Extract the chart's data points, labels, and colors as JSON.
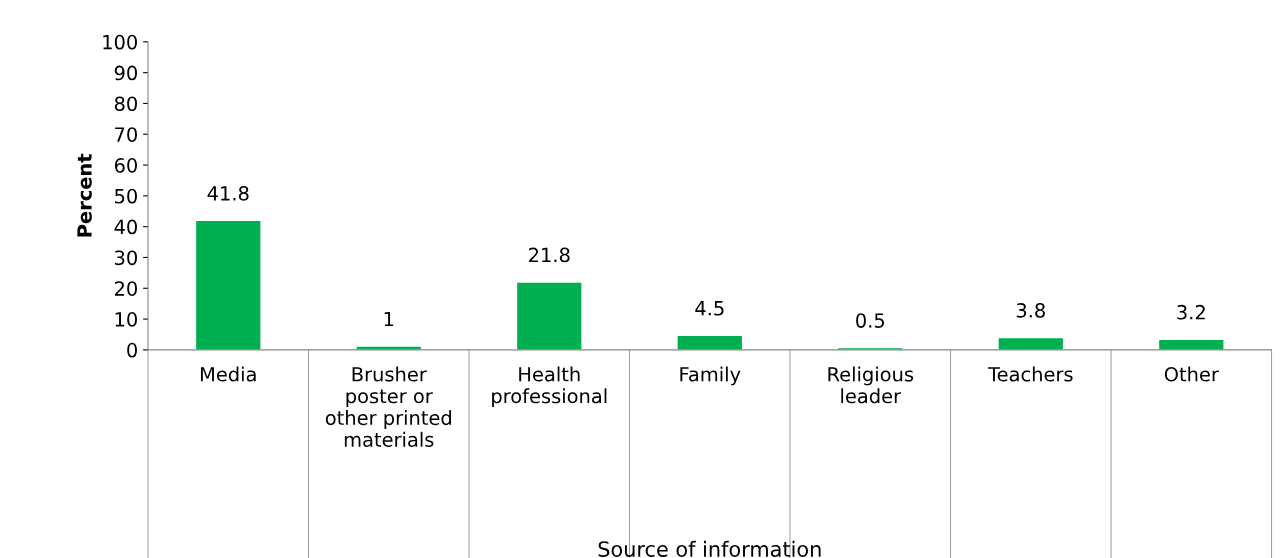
{
  "chart_data": {
    "type": "bar",
    "xlabel": "Source of information",
    "ylabel": "Percent",
    "categories": [
      "Media",
      "Brusher\nposter or\nother printed\nmaterials",
      "Health\nprofessional",
      "Family",
      "Religious\nleader",
      "Teachers",
      "Other"
    ],
    "values": [
      41.8,
      1,
      21.8,
      4.5,
      0.5,
      3.8,
      3.2
    ],
    "color": "#00b050",
    "ylim": [
      0,
      100
    ],
    "yticks": [
      0,
      10,
      20,
      30,
      40,
      50,
      60,
      70,
      80,
      90,
      100
    ],
    "data_labels": true,
    "grid": false,
    "legend": false
  }
}
